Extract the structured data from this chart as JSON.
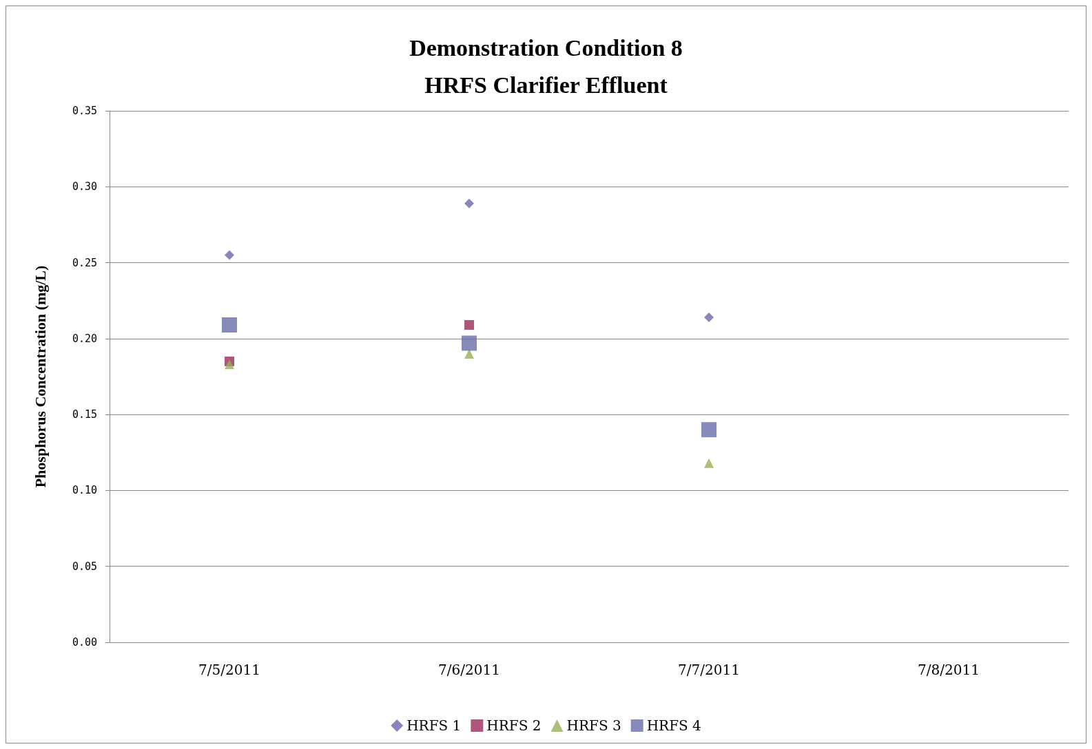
{
  "chart_data": {
    "type": "scatter",
    "title": "Demonstration Condition 8\nHRFS Clarifier Effluent",
    "ylabel": "Phosphorus Concentration (mg/L)",
    "categories": [
      "7/5/2011",
      "7/6/2011",
      "7/7/2011",
      "7/8/2011"
    ],
    "series": [
      {
        "name": "HRFS 1",
        "color": "#6b69a8",
        "marker": "diamond",
        "values": [
          0.255,
          0.289,
          0.214,
          null
        ]
      },
      {
        "name": "HRFS 2",
        "color": "#9e2a5a",
        "marker": "square",
        "values": [
          0.185,
          0.209,
          null,
          null
        ]
      },
      {
        "name": "HRFS 3",
        "color": "#9aae5a",
        "marker": "triangle",
        "values": [
          0.183,
          0.19,
          0.118,
          null
        ]
      },
      {
        "name": "HRFS 4",
        "color": "#686ea8",
        "marker": "square",
        "values": [
          0.209,
          0.197,
          0.14,
          null
        ]
      }
    ],
    "ylim": [
      0,
      0.35
    ],
    "yticks": [
      {
        "value": 0,
        "label": "0.00"
      },
      0.05,
      {
        "value": 0.1,
        "label": "0.10"
      },
      0.15,
      {
        "value": 0.2,
        "label": "0.20"
      },
      0.25,
      {
        "value": 0.3,
        "label": "0.30"
      },
      0.35
    ],
    "grid": "y",
    "legend": "bottom"
  }
}
